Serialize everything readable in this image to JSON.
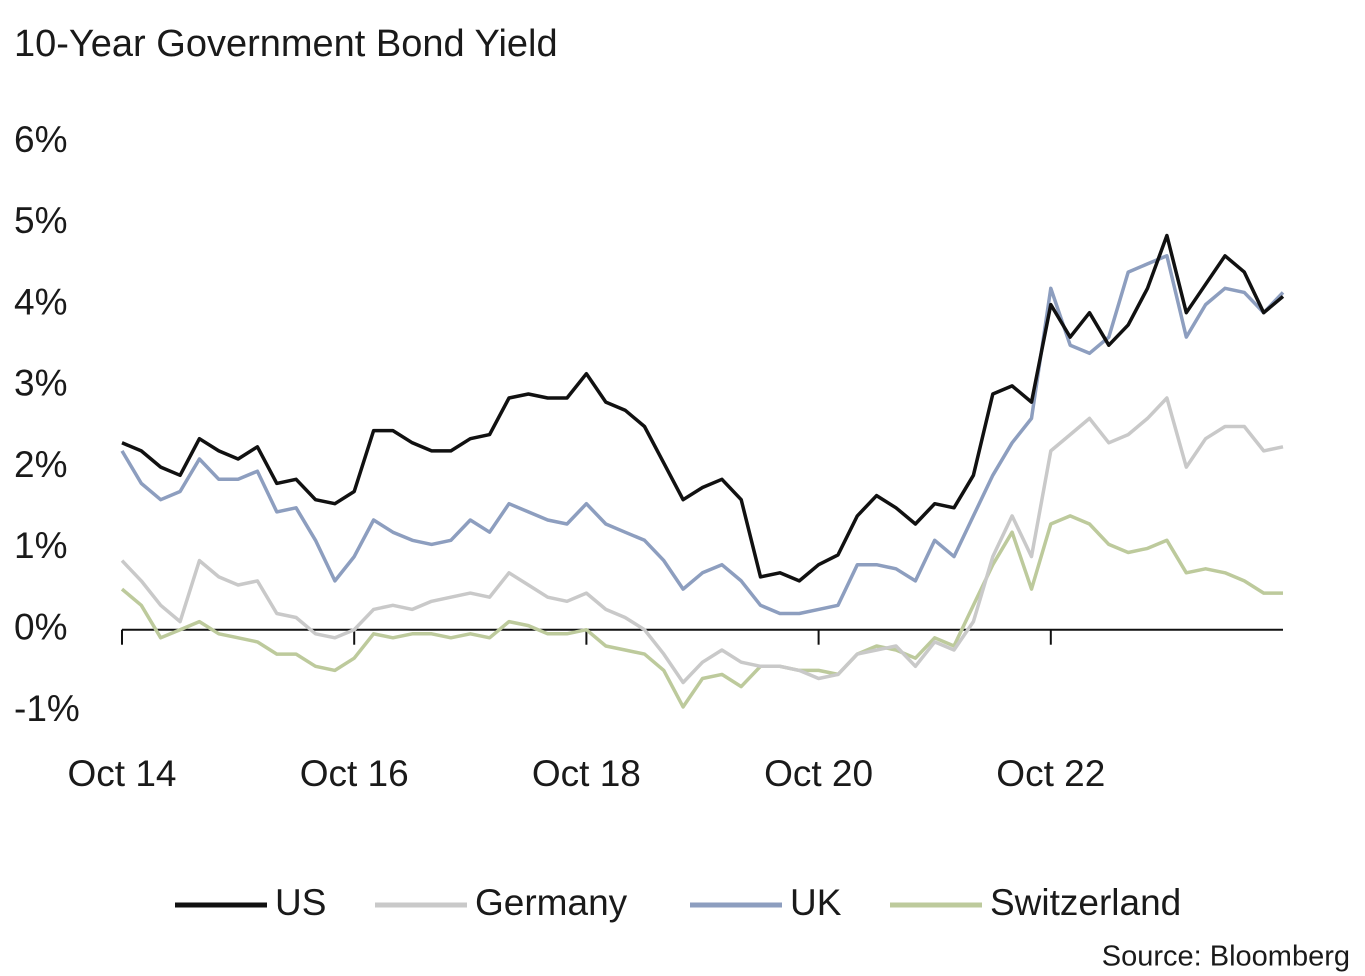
{
  "chart_data": {
    "type": "line",
    "title": "10-Year Government Bond Yield",
    "source": "Source: Bloomberg",
    "x": [
      "2014-10",
      "2014-12",
      "2015-02",
      "2015-04",
      "2015-06",
      "2015-08",
      "2015-10",
      "2015-12",
      "2016-02",
      "2016-04",
      "2016-06",
      "2016-08",
      "2016-10",
      "2016-12",
      "2017-02",
      "2017-04",
      "2017-06",
      "2017-08",
      "2017-10",
      "2017-12",
      "2018-02",
      "2018-04",
      "2018-06",
      "2018-08",
      "2018-10",
      "2018-12",
      "2019-02",
      "2019-04",
      "2019-06",
      "2019-08",
      "2019-10",
      "2019-12",
      "2020-02",
      "2020-04",
      "2020-06",
      "2020-08",
      "2020-10",
      "2020-12",
      "2021-02",
      "2021-04",
      "2021-06",
      "2021-08",
      "2021-10",
      "2021-12",
      "2022-02",
      "2022-04",
      "2022-06",
      "2022-08",
      "2022-10",
      "2022-12",
      "2023-02",
      "2023-04",
      "2023-06",
      "2023-08",
      "2023-10",
      "2023-12",
      "2024-02",
      "2024-04",
      "2024-06",
      "2024-08",
      "2024-10"
    ],
    "series": [
      {
        "name": "US",
        "color": "#111111",
        "values": [
          2.3,
          2.2,
          2.0,
          1.9,
          2.35,
          2.2,
          2.1,
          2.25,
          1.8,
          1.85,
          1.6,
          1.55,
          1.7,
          2.45,
          2.45,
          2.3,
          2.2,
          2.2,
          2.35,
          2.4,
          2.85,
          2.9,
          2.85,
          2.85,
          3.15,
          2.8,
          2.7,
          2.5,
          2.05,
          1.6,
          1.75,
          1.85,
          1.6,
          0.65,
          0.7,
          0.6,
          0.8,
          0.92,
          1.4,
          1.65,
          1.5,
          1.3,
          1.55,
          1.5,
          1.9,
          2.9,
          3.0,
          2.8,
          4.0,
          3.6,
          3.9,
          3.5,
          3.75,
          4.2,
          4.85,
          3.9,
          4.25,
          4.6,
          4.4,
          3.9,
          4.1
        ]
      },
      {
        "name": "Germany",
        "color": "#c9c9c9",
        "values": [
          0.85,
          0.6,
          0.3,
          0.1,
          0.85,
          0.65,
          0.55,
          0.6,
          0.2,
          0.15,
          -0.05,
          -0.1,
          0.0,
          0.25,
          0.3,
          0.25,
          0.35,
          0.4,
          0.45,
          0.4,
          0.7,
          0.55,
          0.4,
          0.35,
          0.45,
          0.25,
          0.15,
          0.0,
          -0.3,
          -0.65,
          -0.4,
          -0.25,
          -0.4,
          -0.45,
          -0.45,
          -0.5,
          -0.6,
          -0.55,
          -0.3,
          -0.25,
          -0.2,
          -0.45,
          -0.15,
          -0.25,
          0.1,
          0.9,
          1.4,
          0.9,
          2.2,
          2.4,
          2.6,
          2.3,
          2.4,
          2.6,
          2.85,
          2.0,
          2.35,
          2.5,
          2.5,
          2.2,
          2.25
        ]
      },
      {
        "name": "UK",
        "color": "#8d9ebf",
        "values": [
          2.2,
          1.8,
          1.6,
          1.7,
          2.1,
          1.85,
          1.85,
          1.95,
          1.45,
          1.5,
          1.1,
          0.6,
          0.9,
          1.35,
          1.2,
          1.1,
          1.05,
          1.1,
          1.35,
          1.2,
          1.55,
          1.45,
          1.35,
          1.3,
          1.55,
          1.3,
          1.2,
          1.1,
          0.85,
          0.5,
          0.7,
          0.8,
          0.6,
          0.3,
          0.2,
          0.2,
          0.25,
          0.3,
          0.8,
          0.8,
          0.75,
          0.6,
          1.1,
          0.9,
          1.4,
          1.9,
          2.3,
          2.6,
          4.2,
          3.5,
          3.4,
          3.6,
          4.4,
          4.5,
          4.6,
          3.6,
          4.0,
          4.2,
          4.15,
          3.9,
          4.15
        ]
      },
      {
        "name": "Switzerland",
        "color": "#bdca9c",
        "values": [
          0.5,
          0.3,
          -0.1,
          0.0,
          0.1,
          -0.05,
          -0.1,
          -0.15,
          -0.3,
          -0.3,
          -0.45,
          -0.5,
          -0.35,
          -0.05,
          -0.1,
          -0.05,
          -0.05,
          -0.1,
          -0.05,
          -0.1,
          0.1,
          0.05,
          -0.05,
          -0.05,
          0.0,
          -0.2,
          -0.25,
          -0.3,
          -0.5,
          -0.95,
          -0.6,
          -0.55,
          -0.7,
          -0.45,
          -0.45,
          -0.5,
          -0.5,
          -0.55,
          -0.3,
          -0.2,
          -0.25,
          -0.35,
          -0.1,
          -0.2,
          0.3,
          0.8,
          1.2,
          0.5,
          1.3,
          1.4,
          1.3,
          1.05,
          0.95,
          1.0,
          1.1,
          0.7,
          0.75,
          0.7,
          0.6,
          0.45,
          0.45
        ]
      }
    ],
    "ylim": [
      -1,
      6
    ],
    "yticks": [
      {
        "value": -1,
        "label": "-1%"
      },
      {
        "value": 0,
        "label": "0%"
      },
      {
        "value": 1,
        "label": "1%"
      },
      {
        "value": 2,
        "label": "2%"
      },
      {
        "value": 3,
        "label": "3%"
      },
      {
        "value": 4,
        "label": "4%"
      },
      {
        "value": 5,
        "label": "5%"
      },
      {
        "value": 6,
        "label": "6%"
      }
    ],
    "xticks": [
      {
        "value": "2014-10",
        "label": "Oct 14"
      },
      {
        "value": "2016-10",
        "label": "Oct 16"
      },
      {
        "value": "2018-10",
        "label": "Oct 18"
      },
      {
        "value": "2020-10",
        "label": "Oct 20"
      },
      {
        "value": "2022-10",
        "label": "Oct 22"
      }
    ],
    "grid": false
  }
}
